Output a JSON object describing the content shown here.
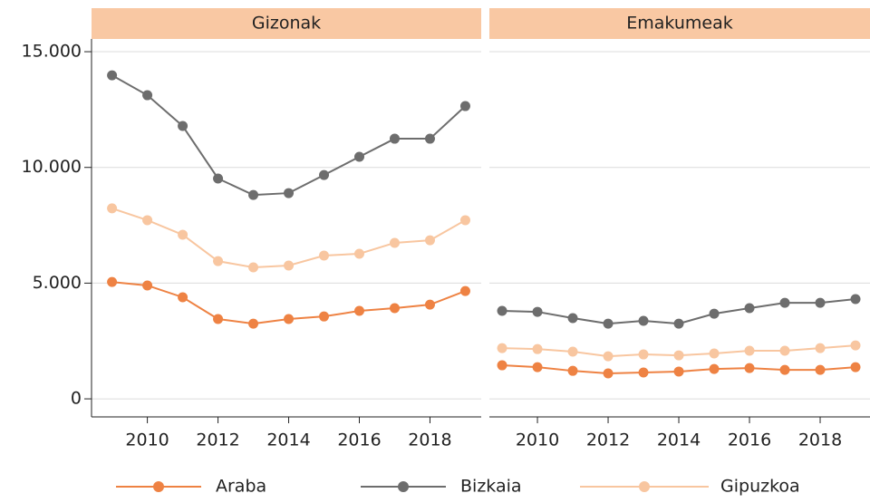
{
  "chart_data": [
    {
      "type": "line",
      "title": "Gizonak",
      "x": [
        2009,
        2010,
        2011,
        2012,
        2013,
        2014,
        2015,
        2016,
        2017,
        2018,
        2019
      ],
      "series": [
        {
          "name": "Araba",
          "color": "#ee8243",
          "values": [
            5050,
            4900,
            4390,
            3450,
            3250,
            3450,
            3560,
            3800,
            3920,
            4070,
            4660
          ]
        },
        {
          "name": "Bizkaia",
          "color": "#6d6d6d",
          "values": [
            13980,
            13120,
            11790,
            9520,
            8810,
            8890,
            9670,
            10460,
            11240,
            11240,
            12650
          ]
        },
        {
          "name": "Gipuzkoa",
          "color": "#f8c6a0",
          "values": [
            8230,
            7720,
            7090,
            5950,
            5680,
            5760,
            6190,
            6270,
            6740,
            6850,
            7720
          ]
        }
      ],
      "xlim": [
        2008.42,
        2019.45
      ],
      "xticks": [
        2010,
        2012,
        2014,
        2016,
        2018
      ],
      "ylim": [
        -780,
        15550
      ],
      "yticks": [
        0,
        {
          "value": 5000,
          "label": "5.000"
        },
        {
          "value": 10000,
          "label": "10.000"
        },
        {
          "value": 15000,
          "label": "15.000"
        }
      ],
      "grid": true
    },
    {
      "type": "line",
      "title": "Emakumeak",
      "x": [
        2009,
        2010,
        2011,
        2012,
        2013,
        2014,
        2015,
        2016,
        2017,
        2018,
        2019
      ],
      "series": [
        {
          "name": "Araba",
          "color": "#ee8243",
          "values": [
            1450,
            1370,
            1210,
            1100,
            1140,
            1180,
            1290,
            1330,
            1250,
            1250,
            1370
          ]
        },
        {
          "name": "Bizkaia",
          "color": "#6d6d6d",
          "values": [
            3800,
            3760,
            3490,
            3250,
            3370,
            3250,
            3680,
            3920,
            4150,
            4150,
            4310
          ]
        },
        {
          "name": "Gipuzkoa",
          "color": "#f8c6a0",
          "values": [
            2190,
            2150,
            2040,
            1840,
            1920,
            1880,
            1960,
            2080,
            2080,
            2190,
            2310
          ]
        }
      ],
      "xlim": [
        2008.64,
        2019.41
      ],
      "xticks": [
        2010,
        2012,
        2014,
        2016,
        2018
      ],
      "ylim": [
        -780,
        15550
      ],
      "yticks": [
        0,
        5000,
        10000,
        15000
      ],
      "grid": true
    }
  ]
}
